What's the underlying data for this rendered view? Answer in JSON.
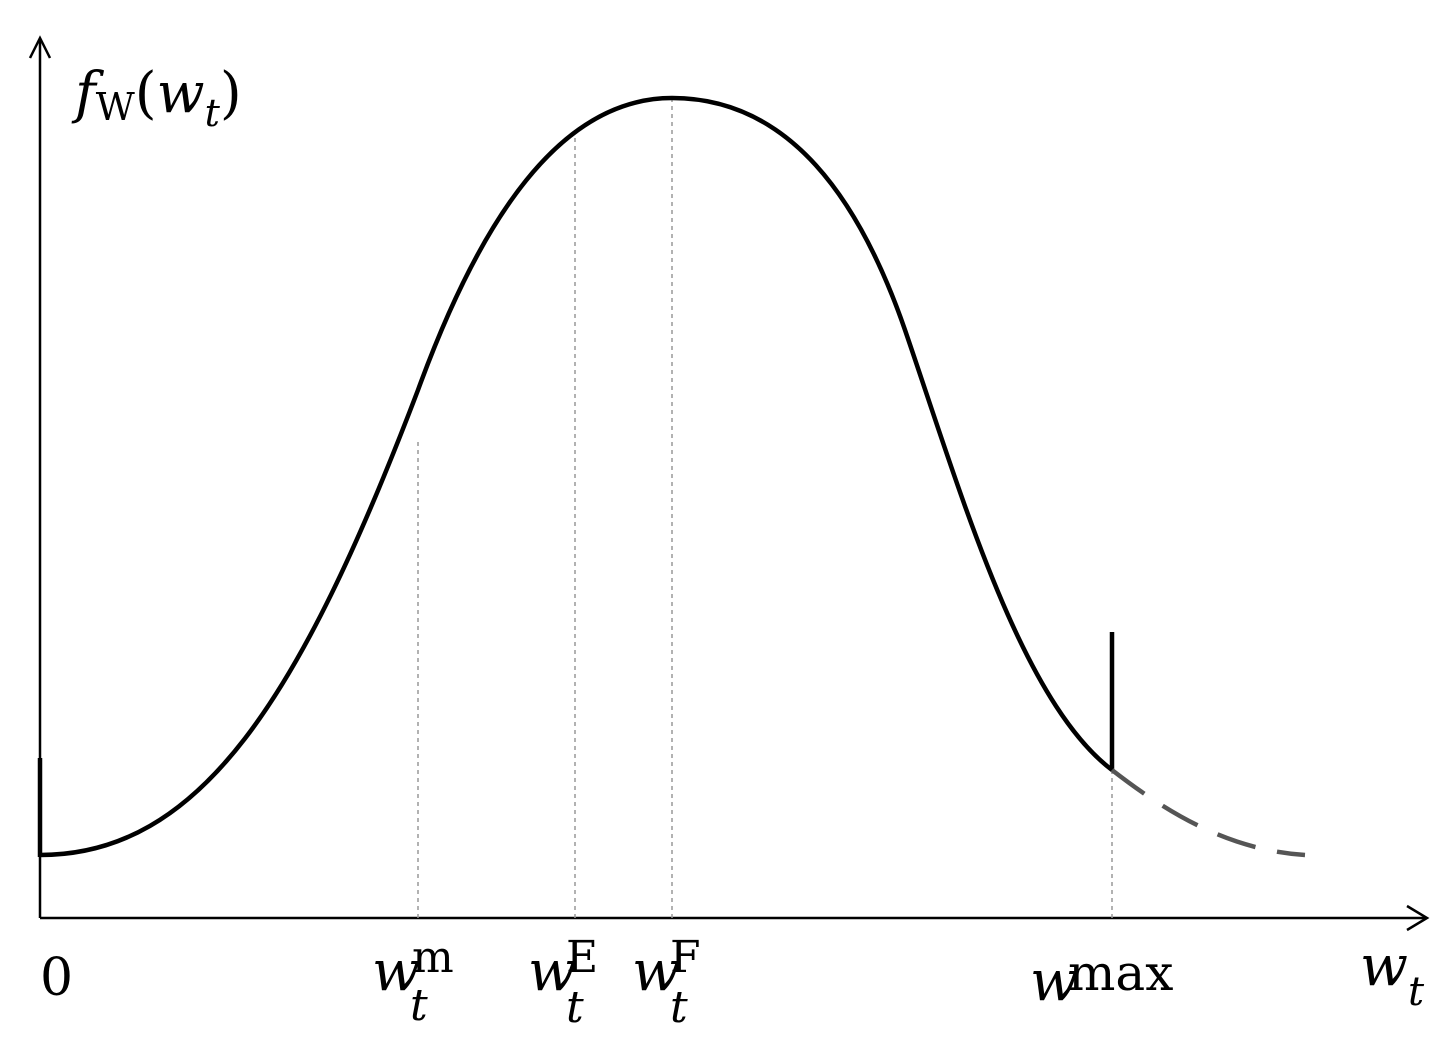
{
  "labels": {
    "y_axis": {
      "f": "f",
      "sub": "W",
      "open": "(",
      "w": "w",
      "wsub": "t",
      "close": ")"
    },
    "x_axis": {
      "w": "w",
      "sub": "t"
    },
    "origin": "0",
    "wm": {
      "w": "w",
      "sup": "m",
      "sub": "t"
    },
    "wE": {
      "w": "w",
      "sup": "E",
      "sub": "t"
    },
    "wF": {
      "w": "w",
      "sup": "F",
      "sub": "t"
    },
    "wmax": {
      "w": "w",
      "sup": "max"
    }
  },
  "colors": {
    "curve": "#000000",
    "dashed_tail": "#555555",
    "guides": "#999999",
    "axes": "#000000"
  }
}
